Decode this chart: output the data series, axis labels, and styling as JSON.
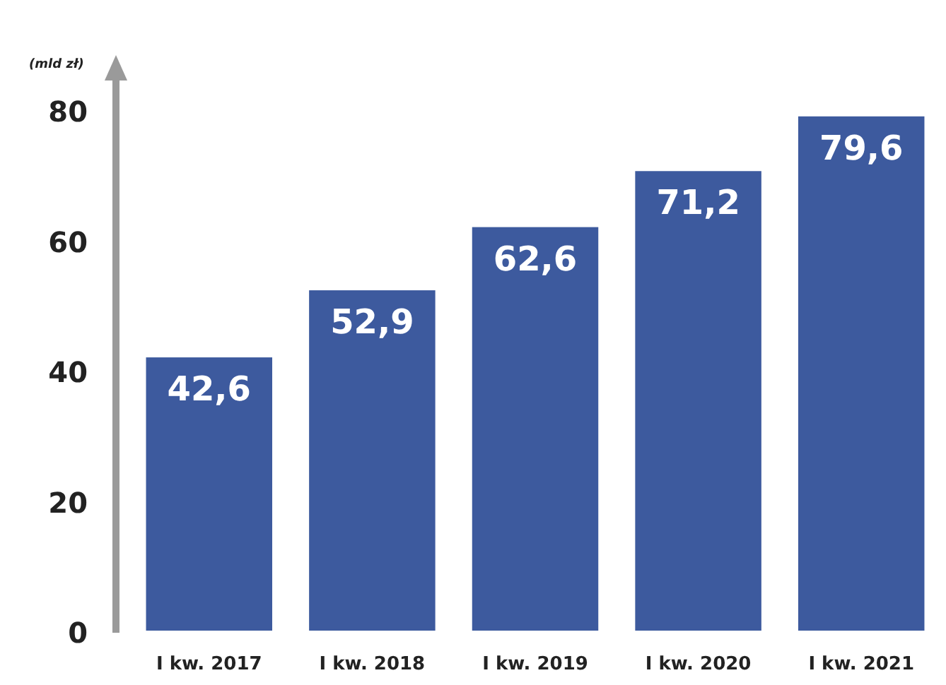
{
  "chart_data": {
    "type": "bar",
    "ylabel": "(mld zł)",
    "categories": [
      "I kw. 2017",
      "I kw. 2018",
      "I kw. 2019",
      "I kw. 2020",
      "I kw. 2021"
    ],
    "values": [
      42.6,
      52.9,
      62.6,
      71.2,
      79.6
    ],
    "value_labels": [
      "42,6",
      "52,9",
      "62,6",
      "71,2",
      "79,6"
    ],
    "color": "#3d5a9e",
    "ylim": [
      0,
      85
    ],
    "yticks": [
      0,
      20,
      40,
      60,
      80
    ],
    "grid": false
  }
}
